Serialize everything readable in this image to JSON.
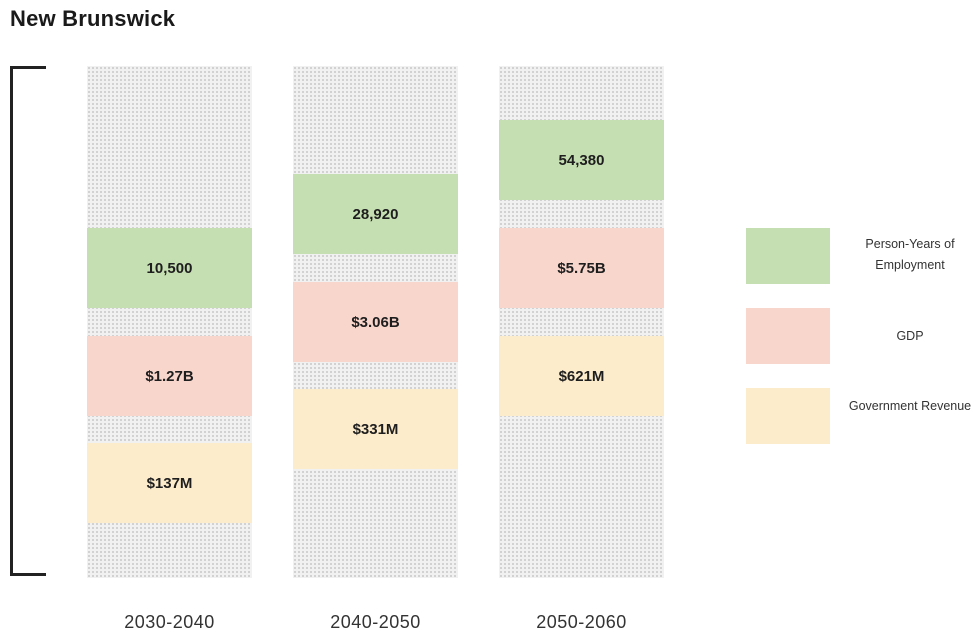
{
  "title": "New Brunswick",
  "colors": {
    "employment": "#c6dfb2",
    "gdp": "#f8d6cc",
    "revenue": "#fdeccb"
  },
  "legend": {
    "employment": "Person-Years of Employment",
    "gdp": "GDP",
    "revenue": "Government Revenue"
  },
  "periods": [
    {
      "label": "2030-2040",
      "employment": "10,500",
      "gdp": "$1.27B",
      "revenue": "$137M"
    },
    {
      "label": "2040-2050",
      "employment": "28,920",
      "gdp": "$3.06B",
      "revenue": "$331M"
    },
    {
      "label": "2050-2060",
      "employment": "54,380",
      "gdp": "$5.75B",
      "revenue": "$621M"
    }
  ],
  "chart_data": {
    "type": "table",
    "title": "New Brunswick",
    "categories": [
      "2030-2040",
      "2040-2050",
      "2050-2060"
    ],
    "series": [
      {
        "name": "Person-Years of Employment",
        "values": [
          10500,
          28920,
          54380
        ]
      },
      {
        "name": "GDP",
        "values": [
          1.27,
          3.06,
          5.75
        ],
        "unit": "$B"
      },
      {
        "name": "Government Revenue",
        "values": [
          137,
          331,
          621
        ],
        "unit": "$M"
      }
    ],
    "legend": "right"
  }
}
